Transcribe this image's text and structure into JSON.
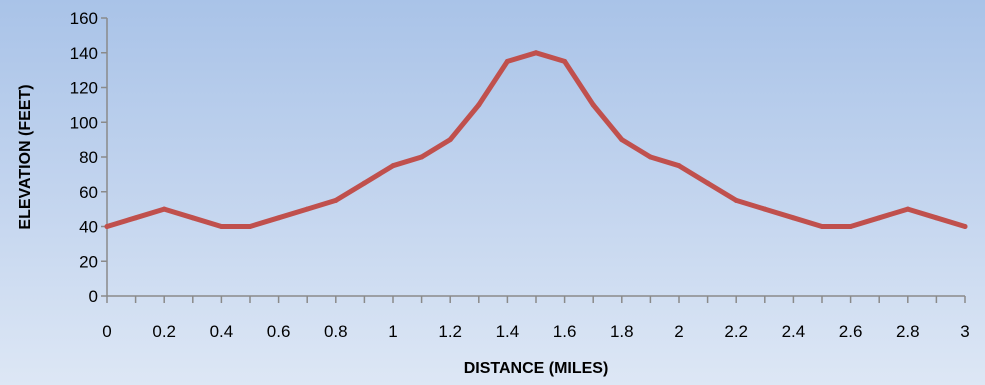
{
  "chart_data": {
    "type": "line",
    "title": "",
    "xlabel": "DISTANCE (MILES)",
    "ylabel": "ELEVATION (FEET)",
    "xlim": [
      0,
      3
    ],
    "ylim": [
      0,
      160
    ],
    "x_ticks": [
      "0",
      "0.2",
      "0.4",
      "0.6",
      "0.8",
      "1",
      "1.2",
      "1.4",
      "1.6",
      "1.8",
      "2",
      "2.2",
      "2.4",
      "2.6",
      "2.8",
      "3"
    ],
    "y_ticks": [
      "0",
      "20",
      "40",
      "60",
      "80",
      "100",
      "120",
      "140",
      "160"
    ],
    "grid": false,
    "legend": "none",
    "series": [
      {
        "color": "#c0504d",
        "x": [
          0,
          0.1,
          0.2,
          0.3,
          0.4,
          0.5,
          0.6,
          0.7,
          0.8,
          0.9,
          1.0,
          1.1,
          1.2,
          1.3,
          1.4,
          1.5,
          1.6,
          1.7,
          1.8,
          1.9,
          2.0,
          2.1,
          2.2,
          2.3,
          2.4,
          2.5,
          2.6,
          2.7,
          2.8,
          2.9,
          3.0
        ],
        "y": [
          40,
          45,
          50,
          45,
          40,
          40,
          45,
          50,
          55,
          65,
          75,
          80,
          90,
          110,
          135,
          140,
          135,
          110,
          90,
          80,
          75,
          65,
          55,
          50,
          45,
          40,
          40,
          45,
          50,
          45,
          40
        ]
      }
    ]
  }
}
